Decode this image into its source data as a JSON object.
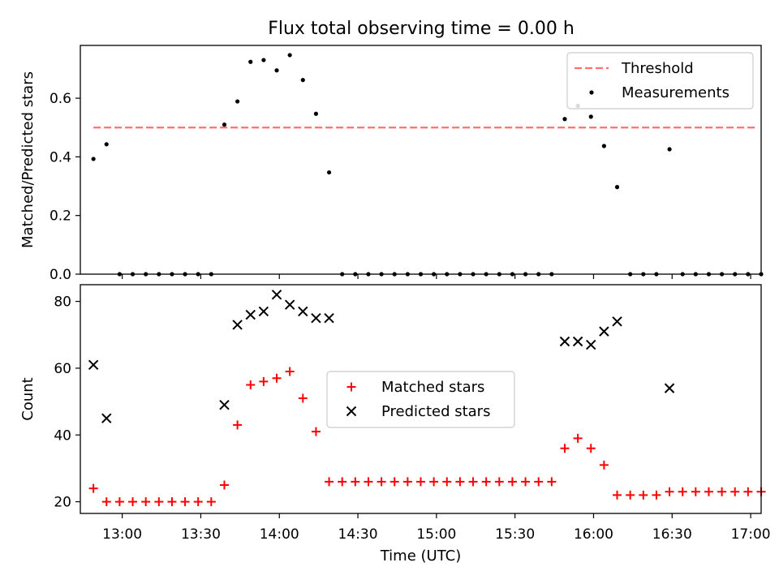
{
  "figure": {
    "title": "Flux total observing time = 0.00 h"
  },
  "chart_data": [
    {
      "type": "scatter",
      "ylabel": "Matched/Predicted stars",
      "xlabel": "",
      "ylim": [
        0,
        0.78
      ],
      "yticks": [
        0.0,
        0.2,
        0.4,
        0.6
      ],
      "ytick_labels": [
        "0.0",
        "0.2",
        "0.4",
        "0.6"
      ],
      "xlim": [
        "12:44",
        "17:04"
      ],
      "xticks": [
        "13:00",
        "13:30",
        "14:00",
        "14:30",
        "15:00",
        "15:30",
        "16:00",
        "16:30",
        "17:00"
      ],
      "legend_position": "upper right",
      "legend": [
        {
          "label": "Threshold",
          "style": "dashed line",
          "color": "#ff7070"
        },
        {
          "label": "Measurements",
          "style": "dot",
          "color": "#000000"
        }
      ],
      "series": [
        {
          "name": "Threshold",
          "kind": "line",
          "color": "#ff7070",
          "x": [
            "12:49",
            "17:02"
          ],
          "y": [
            0.5,
            0.5
          ]
        },
        {
          "name": "Measurements",
          "kind": "scatter",
          "color": "#000000",
          "x": [
            "12:49",
            "12:54",
            "12:59",
            "13:04",
            "13:09",
            "13:14",
            "13:19",
            "13:24",
            "13:29",
            "13:34",
            "13:39",
            "13:44",
            "13:49",
            "13:54",
            "13:59",
            "14:04",
            "14:09",
            "14:14",
            "14:19",
            "14:24",
            "14:29",
            "14:34",
            "14:39",
            "14:44",
            "14:49",
            "14:54",
            "14:59",
            "15:04",
            "15:09",
            "15:14",
            "15:19",
            "15:24",
            "15:29",
            "15:34",
            "15:39",
            "15:44",
            "15:49",
            "15:54",
            "15:59",
            "16:04",
            "16:09",
            "16:14",
            "16:19",
            "16:24",
            "16:29",
            "16:34",
            "16:39",
            "16:44",
            "16:49",
            "16:54",
            "16:59",
            "17:04"
          ],
          "y": [
            0.393,
            0.443,
            0.0,
            0.0,
            0.0,
            0.0,
            0.0,
            0.0,
            0.0,
            0.0,
            0.51,
            0.589,
            0.724,
            0.73,
            0.695,
            0.747,
            0.662,
            0.547,
            0.347,
            0.0,
            0.0,
            0.0,
            0.0,
            0.0,
            0.0,
            0.0,
            0.0,
            0.0,
            0.0,
            0.0,
            0.0,
            0.0,
            0.0,
            0.0,
            0.0,
            0.0,
            0.529,
            0.574,
            0.537,
            0.437,
            0.297,
            0.0,
            0.0,
            0.0,
            0.426,
            0.0,
            0.0,
            0.0,
            0.0,
            0.0,
            0.0,
            0.0
          ]
        }
      ]
    },
    {
      "type": "scatter",
      "ylabel": "Count",
      "xlabel": "Time (UTC)",
      "ylim": [
        16.5,
        85
      ],
      "yticks": [
        20,
        40,
        60,
        80
      ],
      "ytick_labels": [
        "20",
        "40",
        "60",
        "80"
      ],
      "xlim": [
        "12:44",
        "17:04"
      ],
      "xticks": [
        "13:00",
        "13:30",
        "14:00",
        "14:30",
        "15:00",
        "15:30",
        "16:00",
        "16:30",
        "17:00"
      ],
      "xtick_labels": [
        "13:00",
        "13:30",
        "14:00",
        "14:30",
        "15:00",
        "15:30",
        "16:00",
        "16:30",
        "17:00"
      ],
      "legend_position": "center",
      "legend": [
        {
          "label": "Matched stars",
          "marker": "+",
          "color": "#ff0000"
        },
        {
          "label": "Predicted stars",
          "marker": "x",
          "color": "#000000"
        }
      ],
      "series": [
        {
          "name": "Matched stars",
          "marker": "+",
          "color": "#ff0000",
          "x": [
            "12:49",
            "12:54",
            "12:59",
            "13:04",
            "13:09",
            "13:14",
            "13:19",
            "13:24",
            "13:29",
            "13:34",
            "13:39",
            "13:44",
            "13:49",
            "13:54",
            "13:59",
            "14:04",
            "14:09",
            "14:14",
            "14:19",
            "14:24",
            "14:29",
            "14:34",
            "14:39",
            "14:44",
            "14:49",
            "14:54",
            "14:59",
            "15:04",
            "15:09",
            "15:14",
            "15:19",
            "15:24",
            "15:29",
            "15:34",
            "15:39",
            "15:44",
            "15:49",
            "15:54",
            "15:59",
            "16:04",
            "16:09",
            "16:14",
            "16:19",
            "16:24",
            "16:29",
            "16:34",
            "16:39",
            "16:44",
            "16:49",
            "16:54",
            "16:59",
            "17:04"
          ],
          "y": [
            24,
            20,
            20,
            20,
            20,
            20,
            20,
            20,
            20,
            20,
            25,
            43,
            55,
            56,
            57,
            59,
            51,
            41,
            26,
            26,
            26,
            26,
            26,
            26,
            26,
            26,
            26,
            26,
            26,
            26,
            26,
            26,
            26,
            26,
            26,
            26,
            36,
            39,
            36,
            31,
            22,
            22,
            22,
            22,
            23,
            23,
            23,
            23,
            23,
            23,
            23,
            23
          ]
        },
        {
          "name": "Predicted stars",
          "marker": "x",
          "color": "#000000",
          "x": [
            "12:49",
            "12:54",
            "13:39",
            "13:44",
            "13:49",
            "13:54",
            "13:59",
            "14:04",
            "14:09",
            "14:14",
            "14:19",
            "15:49",
            "15:54",
            "15:59",
            "16:04",
            "16:09",
            "16:29"
          ],
          "y": [
            61,
            45,
            49,
            73,
            76,
            77,
            82,
            79,
            77,
            75,
            75,
            68,
            68,
            67,
            71,
            74,
            54
          ]
        }
      ]
    }
  ]
}
